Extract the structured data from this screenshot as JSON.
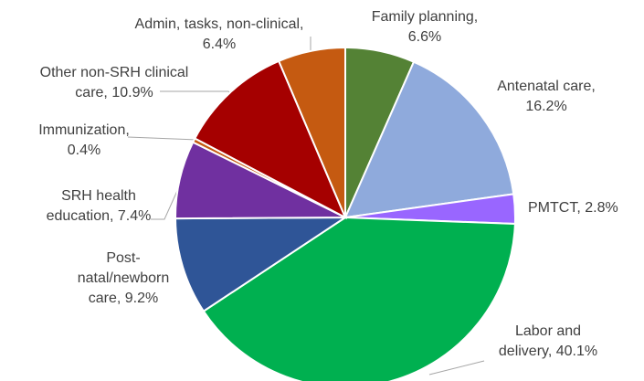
{
  "chart_data": {
    "type": "pie",
    "categories": [
      "Family planning,",
      "Antenatal care,",
      "PMTCT,",
      "Labor and delivery,",
      "Post-natal/newborn care,",
      "SRH health education,",
      "Immunization,",
      "Other non-SRH clinical care,",
      "Admin, tasks, non-clinical,"
    ],
    "values": [
      6.6,
      16.2,
      2.8,
      40.1,
      9.2,
      7.4,
      0.4,
      10.9,
      6.4
    ],
    "value_labels": [
      "6.6%",
      "16.2%",
      "2.8%",
      "40.1%",
      "9.2%",
      "7.4%",
      "0.4%",
      "10.9%",
      "6.4%"
    ],
    "colors": [
      "#548235",
      "#8faadc",
      "#9966ff",
      "#00b050",
      "#2f5597",
      "#7030a0",
      "#c55a11",
      "#a50000",
      "#c55a11"
    ]
  }
}
